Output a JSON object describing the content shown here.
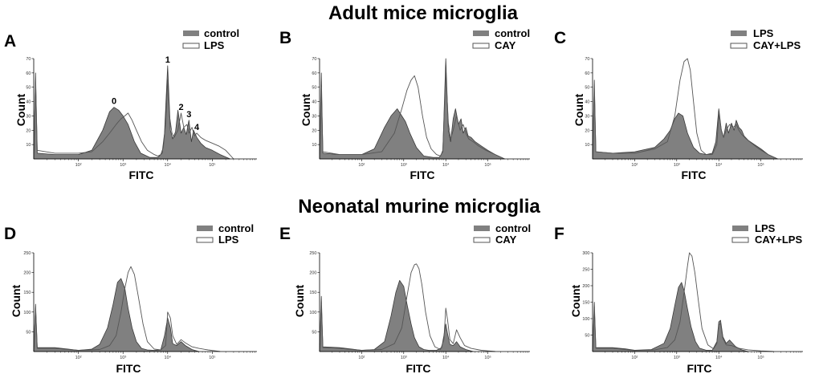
{
  "figure": {
    "section_titles": [
      "Adult mice microglia",
      "Neonatal murine microglia"
    ],
    "colors": {
      "filled": "#808080",
      "outline": "#555555",
      "axis": "#000000"
    }
  },
  "chart_data": [
    {
      "type": "area",
      "panel": "A",
      "title": "",
      "xlabel": "FITC",
      "ylabel": "Count",
      "xscale": "log",
      "xlim": [
        10,
        1000000
      ],
      "ylim": [
        0,
        70
      ],
      "xticks": [
        "10²",
        "10³",
        "10⁴",
        "10⁵"
      ],
      "yticks": [
        "10",
        "20",
        "30",
        "40",
        "50",
        "60",
        "70"
      ],
      "legend": [
        "control",
        "LPS"
      ],
      "legend_position": "top-right",
      "peak_labels": [
        {
          "text": "0",
          "x": 630
        },
        {
          "text": "1",
          "x": 10000
        },
        {
          "text": "2",
          "x": 20000
        },
        {
          "text": "3",
          "x": 30000
        },
        {
          "text": "4",
          "x": 45000
        }
      ],
      "series": [
        {
          "name": "control",
          "style": "filled",
          "x": [
            10,
            11,
            12,
            30,
            100,
            200,
            350,
            500,
            630,
            800,
            1000,
            1300,
            1800,
            2500,
            4000,
            6000,
            7500,
            8500,
            10000,
            11500,
            13000,
            15000,
            17000,
            20000,
            23000,
            26000,
            30000,
            34000,
            38000,
            45000,
            55000,
            70000,
            100000,
            150000,
            250000
          ],
          "y": [
            0,
            60,
            4,
            3,
            3,
            6,
            20,
            33,
            36,
            34,
            30,
            24,
            12,
            4,
            1,
            1,
            4,
            18,
            65,
            20,
            14,
            19,
            34,
            18,
            22,
            17,
            27,
            12,
            20,
            15,
            11,
            8,
            6,
            3,
            0
          ]
        },
        {
          "name": "LPS",
          "style": "outline",
          "x": [
            10,
            11,
            12,
            30,
            100,
            200,
            350,
            500,
            700,
            900,
            1100,
            1300,
            1600,
            2000,
            2600,
            3500,
            5000,
            6000,
            7000,
            8000,
            9000,
            10000,
            11000,
            12500,
            14000,
            17000,
            20000,
            23000,
            27000,
            30000,
            35000,
            40000,
            45000,
            55000,
            70000,
            100000,
            140000,
            200000,
            300000
          ],
          "y": [
            0,
            55,
            6,
            4,
            4,
            5,
            12,
            18,
            24,
            28,
            30,
            32,
            27,
            20,
            12,
            6,
            3,
            2,
            3,
            8,
            25,
            55,
            30,
            18,
            15,
            20,
            32,
            22,
            24,
            18,
            22,
            16,
            18,
            15,
            13,
            11,
            9,
            6,
            0
          ]
        }
      ]
    },
    {
      "type": "area",
      "panel": "B",
      "title": "",
      "xlabel": "FITC",
      "ylabel": "Count",
      "xscale": "log",
      "xlim": [
        10,
        1000000
      ],
      "ylim": [
        0,
        70
      ],
      "xticks": [
        "10²",
        "10³",
        "10⁴",
        "10⁵"
      ],
      "yticks": [
        "10",
        "20",
        "30",
        "40",
        "50",
        "60",
        "70"
      ],
      "legend": [
        "control",
        "CAY"
      ],
      "legend_position": "top-right",
      "peak_labels": [],
      "series": [
        {
          "name": "control",
          "style": "filled",
          "x": [
            10,
            11,
            12,
            30,
            100,
            200,
            350,
            500,
            700,
            900,
            1100,
            1400,
            2000,
            3000,
            5000,
            7000,
            8500,
            10000,
            11500,
            13000,
            15000,
            17000,
            20000,
            23000,
            26000,
            30000,
            34000,
            40000,
            50000,
            70000,
            100000,
            150000,
            250000
          ],
          "y": [
            0,
            60,
            4,
            3,
            3,
            7,
            22,
            30,
            35,
            30,
            26,
            18,
            8,
            2,
            1,
            1,
            5,
            70,
            20,
            12,
            28,
            35,
            24,
            28,
            18,
            22,
            16,
            15,
            12,
            9,
            6,
            3,
            0
          ]
        },
        {
          "name": "CAY",
          "style": "outline",
          "x": [
            10,
            11,
            12,
            30,
            100,
            300,
            600,
            900,
            1200,
            1500,
            1800,
            2200,
            2800,
            3500,
            4500,
            6000,
            7500,
            8500,
            10000,
            11500,
            13000,
            15000,
            18000,
            22000,
            26000,
            30000,
            35000,
            45000,
            60000,
            90000,
            150000,
            250000
          ],
          "y": [
            0,
            50,
            5,
            3,
            3,
            5,
            18,
            35,
            48,
            55,
            58,
            50,
            30,
            15,
            7,
            3,
            2,
            6,
            60,
            25,
            14,
            20,
            30,
            20,
            24,
            18,
            14,
            12,
            9,
            6,
            3,
            0
          ]
        }
      ]
    },
    {
      "type": "area",
      "panel": "C",
      "title": "",
      "xlabel": "FITC",
      "ylabel": "Count",
      "xscale": "log",
      "xlim": [
        10,
        1000000
      ],
      "ylim": [
        0,
        70
      ],
      "xticks": [
        "10²",
        "10³",
        "10⁴",
        "10⁵"
      ],
      "yticks": [
        "10",
        "20",
        "30",
        "40",
        "50",
        "60",
        "70"
      ],
      "legend": [
        "LPS",
        "CAY+LPS"
      ],
      "legend_position": "top-right",
      "peak_labels": [],
      "series": [
        {
          "name": "LPS",
          "style": "filled",
          "x": [
            10,
            11,
            12,
            30,
            100,
            300,
            500,
            700,
            900,
            1100,
            1400,
            1800,
            2500,
            3500,
            5000,
            7000,
            8500,
            10000,
            11500,
            13000,
            15000,
            17000,
            20000,
            23000,
            26000,
            30000,
            35000,
            40000,
            50000,
            70000,
            100000,
            150000,
            250000
          ],
          "y": [
            0,
            55,
            5,
            4,
            5,
            8,
            14,
            20,
            28,
            32,
            30,
            18,
            8,
            4,
            3,
            4,
            12,
            35,
            20,
            15,
            25,
            18,
            25,
            20,
            27,
            22,
            20,
            16,
            13,
            10,
            7,
            3,
            0
          ]
        },
        {
          "name": "CAY+LPS",
          "style": "outline",
          "x": [
            10,
            11,
            12,
            30,
            100,
            300,
            600,
            900,
            1200,
            1500,
            1800,
            2100,
            2500,
            3000,
            3800,
            5000,
            7000,
            9000,
            10000,
            11500,
            13000,
            15000,
            18000,
            22000,
            26000,
            30000,
            35000,
            45000,
            60000,
            90000,
            150000,
            250000
          ],
          "y": [
            0,
            50,
            5,
            4,
            4,
            7,
            12,
            30,
            55,
            68,
            70,
            62,
            40,
            18,
            6,
            3,
            3,
            10,
            32,
            20,
            15,
            20,
            24,
            22,
            24,
            20,
            17,
            14,
            11,
            7,
            3,
            0
          ]
        }
      ]
    },
    {
      "type": "area",
      "panel": "D",
      "title": "",
      "xlabel": "FITC",
      "ylabel": "Count",
      "xscale": "log",
      "xlim": [
        10,
        1000000
      ],
      "ylim": [
        0,
        250
      ],
      "xticks": [
        "10²",
        "10³",
        "10⁴",
        "10⁵"
      ],
      "yticks": [
        "50",
        "100",
        "150",
        "200",
        "250"
      ],
      "legend": [
        "control",
        "LPS"
      ],
      "legend_position": "top-right",
      "peak_labels": [],
      "series": [
        {
          "name": "control",
          "style": "filled",
          "x": [
            10,
            11,
            12,
            30,
            60,
            100,
            200,
            300,
            450,
            600,
            750,
            900,
            1100,
            1300,
            1600,
            2000,
            2600,
            3500,
            5000,
            7000,
            8500,
            10000,
            11500,
            13000,
            16000,
            20000,
            25000,
            35000,
            50000
          ],
          "y": [
            0,
            120,
            10,
            10,
            6,
            3,
            6,
            18,
            60,
            120,
            175,
            185,
            160,
            110,
            60,
            25,
            8,
            4,
            3,
            4,
            40,
            85,
            60,
            20,
            15,
            25,
            15,
            5,
            0
          ]
        },
        {
          "name": "LPS",
          "style": "outline",
          "x": [
            10,
            11,
            12,
            30,
            60,
            100,
            300,
            500,
            700,
            900,
            1100,
            1300,
            1500,
            1800,
            2200,
            2800,
            3500,
            5000,
            7000,
            9000,
            10000,
            11500,
            13000,
            16000,
            20000,
            25000,
            35000,
            50000,
            80000,
            150000
          ],
          "y": [
            0,
            110,
            8,
            8,
            5,
            3,
            5,
            15,
            40,
            100,
            160,
            200,
            215,
            195,
            140,
            70,
            25,
            6,
            4,
            15,
            100,
            85,
            40,
            18,
            30,
            22,
            12,
            8,
            4,
            0
          ]
        }
      ]
    },
    {
      "type": "area",
      "panel": "E",
      "title": "",
      "xlabel": "FITC",
      "ylabel": "Count",
      "xscale": "log",
      "xlim": [
        10,
        1000000
      ],
      "ylim": [
        0,
        250
      ],
      "xticks": [
        "10²",
        "10³",
        "10⁴",
        "10⁵"
      ],
      "yticks": [
        "50",
        "100",
        "150",
        "200",
        "250"
      ],
      "legend": [
        "control",
        "CAY"
      ],
      "legend_position": "top-right",
      "peak_labels": [],
      "series": [
        {
          "name": "control",
          "style": "filled",
          "x": [
            10,
            11,
            12,
            30,
            60,
            100,
            200,
            350,
            500,
            650,
            800,
            1000,
            1200,
            1500,
            1800,
            2300,
            3000,
            4000,
            6000,
            8000,
            9000,
            10000,
            11000,
            12500,
            15000,
            18000,
            22000,
            30000,
            45000
          ],
          "y": [
            0,
            140,
            12,
            10,
            6,
            3,
            5,
            25,
            90,
            150,
            180,
            165,
            120,
            70,
            35,
            12,
            5,
            3,
            3,
            10,
            40,
            70,
            45,
            18,
            15,
            25,
            12,
            5,
            0
          ]
        },
        {
          "name": "CAY",
          "style": "outline",
          "x": [
            10,
            11,
            12,
            30,
            60,
            100,
            300,
            600,
            900,
            1200,
            1500,
            1800,
            2000,
            2300,
            2700,
            3300,
            4200,
            5500,
            7500,
            9000,
            10000,
            11000,
            12500,
            15000,
            18000,
            22000,
            28000,
            40000,
            70000,
            150000
          ],
          "y": [
            0,
            120,
            10,
            8,
            5,
            3,
            5,
            20,
            60,
            140,
            200,
            220,
            222,
            210,
            170,
            100,
            40,
            12,
            5,
            30,
            110,
            80,
            30,
            20,
            55,
            35,
            15,
            8,
            3,
            0
          ]
        }
      ]
    },
    {
      "type": "area",
      "panel": "F",
      "title": "",
      "xlabel": "FITC",
      "ylabel": "Count",
      "xscale": "log",
      "xlim": [
        10,
        1000000
      ],
      "ylim": [
        0,
        300
      ],
      "xticks": [
        "10²",
        "10³",
        "10⁴",
        "10⁵"
      ],
      "yticks": [
        "50",
        "100",
        "150",
        "200",
        "250",
        "300"
      ],
      "legend": [
        "LPS",
        "CAY+LPS"
      ],
      "legend_position": "top-right",
      "peak_labels": [],
      "series": [
        {
          "name": "LPS",
          "style": "filled",
          "x": [
            10,
            11,
            12,
            30,
            60,
            100,
            250,
            500,
            700,
            900,
            1100,
            1300,
            1500,
            1800,
            2200,
            2800,
            3500,
            5000,
            7000,
            9000,
            10000,
            11000,
            12500,
            15000,
            18000,
            25000,
            35000,
            50000
          ],
          "y": [
            0,
            150,
            12,
            12,
            8,
            4,
            6,
            25,
            70,
            140,
            195,
            210,
            185,
            130,
            75,
            30,
            10,
            4,
            4,
            30,
            90,
            95,
            45,
            25,
            35,
            15,
            5,
            0
          ]
        },
        {
          "name": "CAY+LPS",
          "style": "outline",
          "x": [
            10,
            11,
            12,
            30,
            60,
            100,
            300,
            600,
            900,
            1200,
            1500,
            1800,
            2000,
            2300,
            2700,
            3300,
            4000,
            5500,
            7500,
            9000,
            10000,
            11000,
            12500,
            15000,
            20000,
            30000,
            50000,
            100000,
            200000
          ],
          "y": [
            0,
            130,
            10,
            10,
            6,
            3,
            5,
            12,
            35,
            90,
            180,
            260,
            300,
            290,
            240,
            150,
            70,
            20,
            8,
            25,
            80,
            85,
            40,
            20,
            18,
            10,
            5,
            2,
            0
          ]
        }
      ]
    }
  ]
}
